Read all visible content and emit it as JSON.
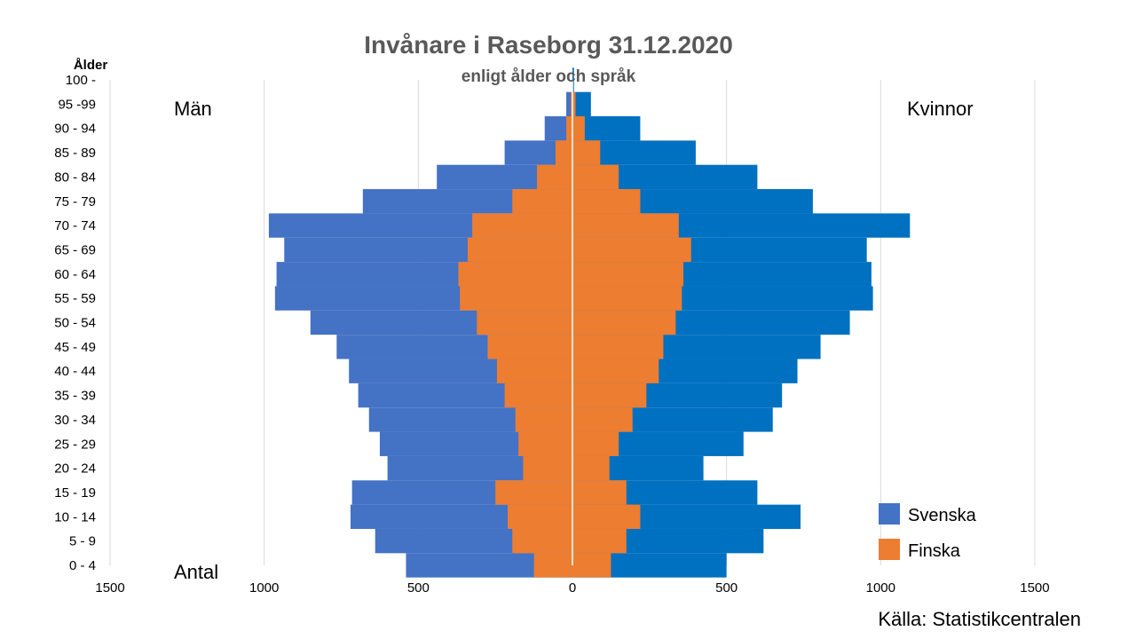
{
  "chart_data": {
    "type": "bar",
    "orientation": "horizontal",
    "layout": "population-pyramid",
    "title": "Invånare i Raseborg 31.12.2020",
    "subtitle": "enligt ålder och språk",
    "ylabel": "Ålder",
    "xlabel": "Antal",
    "left_group_label": "Män",
    "right_group_label": "Kvinnor",
    "source": "Källa: Statistikcentralen",
    "categories": [
      "0 - 4",
      "5 - 9",
      "10 - 14",
      "15 - 19",
      "20 - 24",
      "25 - 29",
      "30 - 34",
      "35 - 39",
      "40 - 44",
      "45 - 49",
      "50 - 54",
      "55 - 59",
      "60 - 64",
      "65 - 69",
      "70 - 74",
      "75 - 79",
      "80 - 84",
      "85 - 89",
      "90 - 94",
      "95 -99",
      "100 -"
    ],
    "x_ticks": [
      -1500,
      -1000,
      -500,
      0,
      500,
      1000,
      1500
    ],
    "x_tick_labels": [
      "1500",
      "1000",
      "500",
      "0",
      "500",
      "1000",
      "1500"
    ],
    "xlim": [
      -1500,
      1500
    ],
    "grid": true,
    "legend_position": "bottom-right",
    "series": [
      {
        "name": "Svenska",
        "color": "#4472C4",
        "group": "Män",
        "values": [
          540,
          640,
          720,
          715,
          600,
          625,
          660,
          695,
          725,
          765,
          850,
          965,
          960,
          935,
          985,
          680,
          440,
          220,
          90,
          20,
          0
        ]
      },
      {
        "name": "Finska",
        "color": "#ED7D31",
        "group": "Män",
        "values": [
          125,
          195,
          210,
          250,
          160,
          175,
          185,
          220,
          245,
          275,
          310,
          365,
          370,
          340,
          325,
          195,
          115,
          55,
          20,
          5,
          0
        ]
      },
      {
        "name": "Svenska",
        "color": "#0070C0",
        "group": "Kvinnor",
        "values": [
          500,
          620,
          740,
          600,
          425,
          555,
          650,
          680,
          730,
          805,
          900,
          975,
          970,
          955,
          1095,
          780,
          600,
          400,
          220,
          60,
          5
        ]
      },
      {
        "name": "Finska",
        "color": "#ED7D31",
        "group": "Kvinnor",
        "values": [
          125,
          175,
          220,
          175,
          120,
          150,
          195,
          240,
          280,
          295,
          335,
          355,
          360,
          385,
          345,
          220,
          150,
          90,
          40,
          10,
          0
        ]
      }
    ],
    "legend": [
      {
        "label": "Svenska",
        "color": "#4472C4"
      },
      {
        "label": "Finska",
        "color": "#ED7D31"
      }
    ]
  }
}
